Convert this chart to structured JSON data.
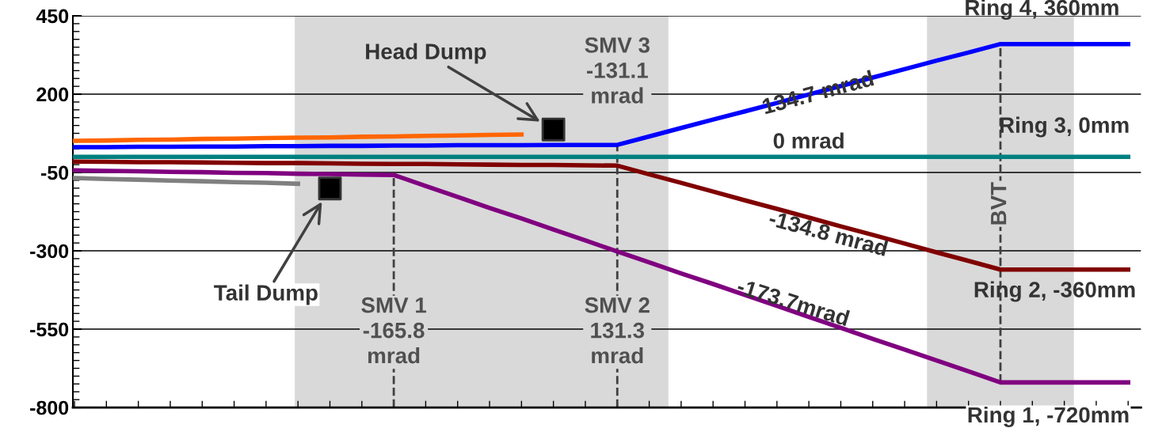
{
  "chart_data": {
    "type": "line",
    "categories": [
      null,
      null,
      null,
      null,
      null,
      null,
      null,
      null,
      null,
      null,
      null,
      null,
      null,
      null,
      null,
      null,
      null,
      null,
      null,
      null,
      null,
      null,
      null,
      null,
      null,
      null,
      null,
      null,
      null,
      null,
      null,
      null,
      null,
      null
    ],
    "ylim": [
      -800,
      450
    ],
    "yticks": [
      -800,
      -550,
      -300,
      -50,
      200,
      450
    ],
    "tick_labels": "y",
    "grid": "y",
    "marker": "none",
    "line_style": "solid",
    "series": [
      {
        "color": "#ff6600",
        "values": [
          51,
          52,
          54,
          55,
          57,
          58,
          60,
          61,
          62,
          64,
          65,
          67,
          68,
          70,
          71,
          null,
          null,
          null,
          null,
          null,
          null,
          null,
          null,
          null,
          null,
          null,
          null,
          null,
          null,
          null,
          null,
          null,
          null,
          null
        ]
      },
      {
        "color": "#0000ff",
        "values": [
          31,
          31,
          32,
          32,
          33,
          33,
          34,
          34,
          35,
          35,
          36,
          36,
          37,
          37,
          37,
          38,
          38,
          38,
          65,
          92,
          119,
          145,
          172,
          199,
          226,
          253,
          280,
          307,
          333,
          360,
          360,
          360,
          360,
          360
        ]
      },
      {
        "color": "#008080",
        "values": [
          0,
          0,
          0,
          0,
          0,
          0,
          0,
          0,
          0,
          0,
          0,
          0,
          0,
          0,
          0,
          0,
          0,
          0,
          0,
          0,
          0,
          0,
          0,
          0,
          0,
          0,
          0,
          0,
          0,
          0,
          0,
          0,
          0,
          0
        ]
      },
      {
        "color": "#800000",
        "values": [
          -15,
          -16,
          -17,
          -17,
          -18,
          -19,
          -20,
          -20,
          -21,
          -22,
          -23,
          -23,
          -24,
          -25,
          -26,
          -26,
          -27,
          -28,
          -56,
          -83,
          -111,
          -139,
          -166,
          -194,
          -222,
          -249,
          -277,
          -305,
          -332,
          -360,
          -360,
          -360,
          -360,
          -360
        ]
      },
      {
        "color": "#800080",
        "values": [
          -43,
          -45,
          -46,
          -48,
          -49,
          -51,
          -52,
          -54,
          -55,
          -57,
          -58,
          -93,
          -128,
          -163,
          -197,
          -232,
          -267,
          -302,
          -337,
          -372,
          -406,
          -441,
          -476,
          -511,
          -546,
          -581,
          -615,
          -650,
          -685,
          -720,
          -720,
          -720,
          -720,
          -720
        ]
      },
      {
        "color": "#808080",
        "values": [
          -68,
          -71,
          -73,
          -76,
          -78,
          -81,
          -83,
          -86,
          null,
          null,
          null,
          null,
          null,
          null,
          null,
          null,
          null,
          null,
          null,
          null,
          null,
          null,
          null,
          null,
          null,
          null,
          null,
          null,
          null,
          null,
          null,
          null,
          null,
          null
        ]
      },
      {
        "type": "scatter",
        "marker": "square",
        "color": "#000000",
        "values": [
          null,
          null,
          null,
          null,
          null,
          null,
          null,
          null,
          -101,
          null,
          null,
          null,
          null,
          null,
          null,
          87,
          null,
          null,
          null,
          null,
          null,
          null,
          null,
          null,
          null,
          null,
          null,
          null,
          null,
          null,
          null,
          null,
          null,
          null
        ]
      }
    ],
    "annotations": [
      "BVT",
      "Head Dump",
      "Tail Dump",
      "SMV 3\n-131.1\nmrad",
      "SMV 1\n-165.8\nmrad",
      "SMV 2\n131.3\nmrad",
      "134.7 mrad",
      "0 mrad",
      "-134.8 mrad",
      "-173.7mrad",
      "Ring 4, 360mm",
      "Ring 3, 0mm",
      "Ring 2, -360mm",
      "Ring 1, -720mm"
    ]
  }
}
